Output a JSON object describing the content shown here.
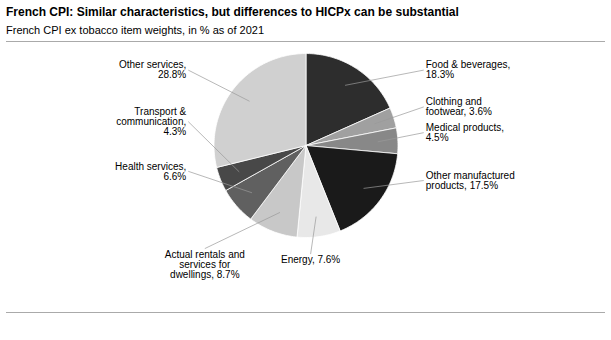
{
  "chart_data": {
    "type": "pie",
    "title": "French CPI: Similar characteristics, but differences to HICPx can be substantial",
    "subtitle": "French CPI ex tobacco item weights, in % as of 2021",
    "categories": [
      "Food & beverages,\n18.3%",
      "Clothing and\nfootwear, 3.6%",
      "Medical products,\n4.5%",
      "Other manufactured\nproducts, 17.5%",
      "Energy, 7.6%",
      "Actual rentals and\nservices for\ndwellings, 8.7%",
      "Health services,\n6.6%",
      "Transport &\ncommunication,\n4.3%",
      "Other services,\n28.8%"
    ],
    "values": [
      18.3,
      3.6,
      4.5,
      17.5,
      7.6,
      8.7,
      6.6,
      4.3,
      28.8
    ],
    "colors": [
      "#2d2d2d",
      "#a0a0a0",
      "#888888",
      "#1a1a1a",
      "#e8e8e8",
      "#c8c8c8",
      "#606060",
      "#484848",
      "#d0d0d0"
    ]
  }
}
